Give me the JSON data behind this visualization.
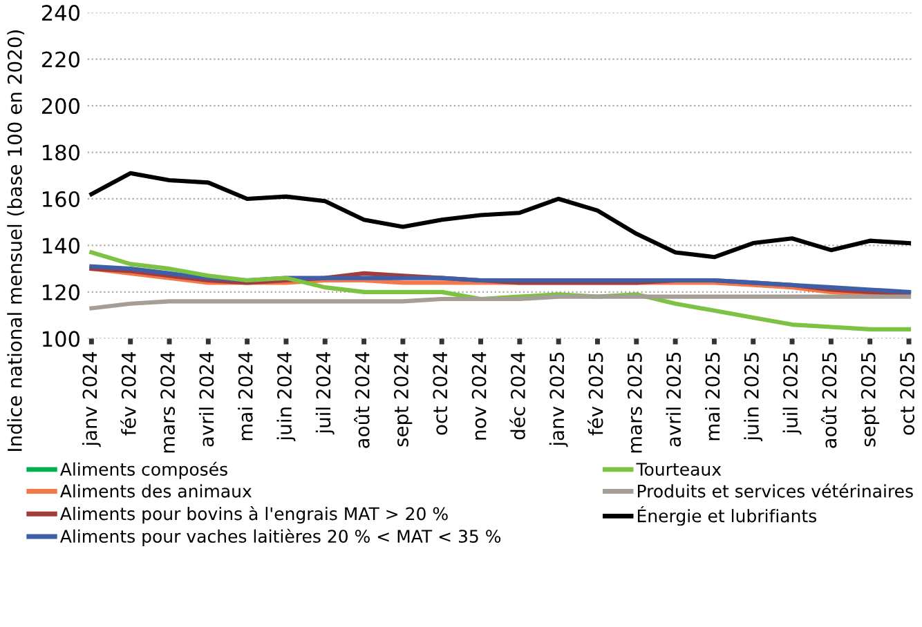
{
  "chart_data": {
    "type": "line",
    "ylabel": "Indice national mensuel (base 100 en 2020)",
    "categories": [
      "janv 2024",
      "fév 2024",
      "mars 2024",
      "avril 2024",
      "mai 2024",
      "juin 2024",
      "juil 2024",
      "août 2024",
      "sept 2024",
      "oct 2024",
      "nov 2024",
      "déc 2024",
      "janv 2025",
      "fév 2025",
      "mars 2025",
      "avril 2025",
      "mai 2025",
      "juin 2025",
      "juil 2025",
      "août 2025",
      "sept 2025",
      "oct 2025"
    ],
    "series": [
      {
        "name": "Aliments composés",
        "color": "#00b050",
        "values": [
          null,
          null,
          null,
          null,
          null,
          null,
          null,
          null,
          null,
          null,
          null,
          null,
          null,
          null,
          null,
          null,
          null,
          null,
          null,
          null,
          null,
          null
        ]
      },
      {
        "name": "Aliments des animaux",
        "color": "#f4794a",
        "values": [
          130,
          128,
          126,
          124,
          124,
          124,
          125,
          125,
          124,
          124,
          124,
          124,
          124,
          124,
          124,
          124,
          124,
          123,
          122,
          120,
          119,
          119
        ]
      },
      {
        "name": "Aliments pour bovins à l'engrais MAT > 20 %",
        "color": "#a33b3b",
        "values": [
          130,
          129,
          127,
          125,
          124,
          125,
          126,
          128,
          127,
          126,
          125,
          124,
          124,
          124,
          124,
          125,
          125,
          124,
          123,
          121,
          120,
          119
        ]
      },
      {
        "name": "Aliments pour vaches laitières 20 % < MAT < 35 %",
        "color": "#3e5fa8",
        "values": [
          131,
          130,
          128,
          126,
          125,
          126,
          126,
          126,
          126,
          126,
          125,
          125,
          125,
          125,
          125,
          125,
          125,
          124,
          123,
          122,
          121,
          120
        ]
      },
      {
        "name": "Tourteaux",
        "color": "#7dc242",
        "values": [
          137,
          132,
          130,
          127,
          125,
          126,
          122,
          120,
          120,
          120,
          117,
          118,
          119,
          118,
          119,
          115,
          112,
          109,
          106,
          105,
          104,
          104
        ]
      },
      {
        "name": "Produits et services vétérinaires",
        "color": "#a59e96",
        "values": [
          113,
          115,
          116,
          116,
          116,
          116,
          116,
          116,
          116,
          117,
          117,
          117,
          118,
          118,
          118,
          118,
          118,
          118,
          118,
          118,
          118,
          118
        ]
      },
      {
        "name": "Énergie et lubrifiants",
        "color": "#000000",
        "values": [
          162,
          171,
          168,
          167,
          160,
          161,
          159,
          151,
          148,
          151,
          153,
          154,
          160,
          155,
          145,
          137,
          135,
          141,
          143,
          138,
          142,
          141
        ]
      }
    ],
    "ylim": [
      100,
      240
    ],
    "yticks": [
      100,
      120,
      140,
      160,
      180,
      200,
      220,
      240
    ],
    "grid": "y",
    "legend": "bottom",
    "marker": "none",
    "line_style": "solid"
  }
}
